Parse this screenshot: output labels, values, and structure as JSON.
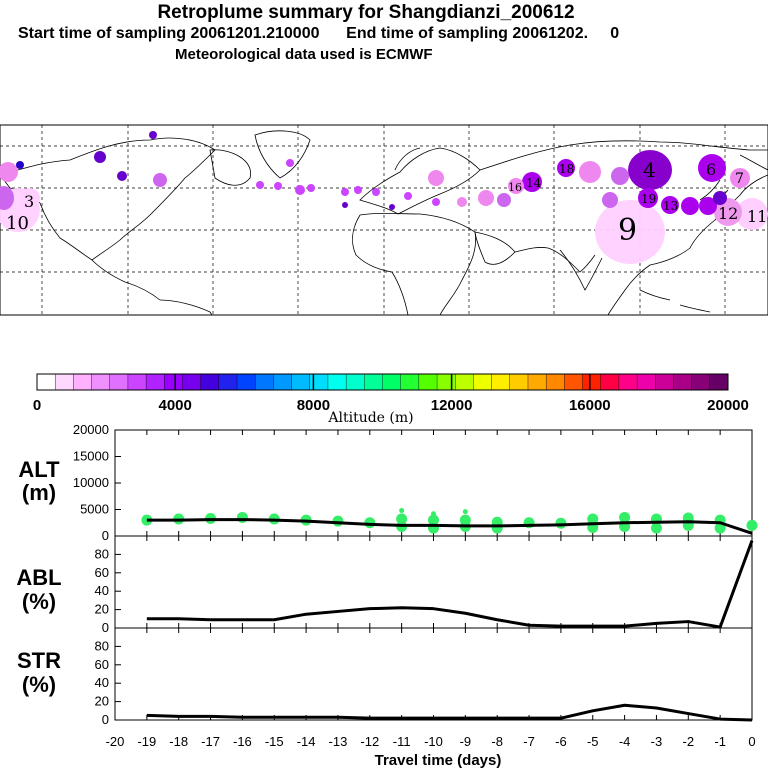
{
  "header": {
    "title": "Retroplume summary for Shangdianzi_200612",
    "line2": "Start time of sampling 20061201.210000      End time of sampling 20061202.     0",
    "line3": "Meteorological data used is ECMWF"
  },
  "map": {
    "markers": [
      {
        "label": "10",
        "color": "#ee99ee"
      },
      {
        "label": "3",
        "color": "#ee99ee"
      },
      {
        "label": "12",
        "color": "#ee99ee"
      },
      {
        "label": "4",
        "color": "#8800cc"
      },
      {
        "label": "6",
        "color": "#8800cc"
      },
      {
        "label": "7",
        "color": "#8800cc"
      },
      {
        "label": "9",
        "color": "#ffd0ff"
      },
      {
        "label": "19",
        "color": "#aa00ee"
      },
      {
        "label": "14",
        "color": "#aa00ee"
      },
      {
        "label": "13",
        "color": "#aa00ee"
      },
      {
        "label": "16",
        "color": "#ee99ee"
      },
      {
        "label": "18",
        "color": "#aa00ee"
      },
      {
        "label": "11",
        "color": "#ffd0ff"
      }
    ]
  },
  "colorbar": {
    "title": "Altitude (m)",
    "ticks": [
      "0",
      "4000",
      "8000",
      "12000",
      "16000",
      "20000"
    ],
    "colors": [
      "#ffffff",
      "#ffd8ff",
      "#ffb0ff",
      "#f090ff",
      "#e070ff",
      "#cc44ff",
      "#b022ff",
      "#9900ff",
      "#7700ee",
      "#4400dd",
      "#2222ee",
      "#0044ff",
      "#0077ff",
      "#0099ff",
      "#00bbff",
      "#00ddff",
      "#00ffee",
      "#00ffcc",
      "#00ff99",
      "#00ff66",
      "#22ff33",
      "#55ff00",
      "#88ff00",
      "#bbff00",
      "#eeff00",
      "#ffee00",
      "#ffcc00",
      "#ffaa00",
      "#ff8800",
      "#ff5500",
      "#ff2200",
      "#ff0044",
      "#ff0088",
      "#ee00aa",
      "#cc0099",
      "#aa0088",
      "#880077",
      "#660066"
    ]
  },
  "chart_data": [
    {
      "type": "line",
      "panel": "ALT",
      "ylabel": "ALT\n(m)",
      "ylabel_l1": "ALT",
      "ylabel_l2": "(m)",
      "ylim": [
        0,
        20000
      ],
      "yticks": [
        "0",
        "5000",
        "10000",
        "15000",
        "20000"
      ],
      "x": [
        -19,
        -18,
        -17,
        -16,
        -15,
        -14,
        -13,
        -12,
        -11,
        -10,
        -9,
        -8,
        -7,
        -6,
        -5,
        -4,
        -3,
        -2,
        -1,
        0
      ],
      "values": [
        3000,
        3000,
        3100,
        3100,
        3000,
        2800,
        2500,
        2200,
        2000,
        2000,
        1900,
        1900,
        2000,
        2100,
        2300,
        2500,
        2600,
        2700,
        2500,
        500
      ],
      "scatter_color": "#33ee66",
      "scatter": [
        {
          "x": -19,
          "y": 3000
        },
        {
          "x": -18,
          "y": 3200
        },
        {
          "x": -17,
          "y": 3300
        },
        {
          "x": -16,
          "y": 3500
        },
        {
          "x": -15,
          "y": 3200
        },
        {
          "x": -14,
          "y": 3000
        },
        {
          "x": -13,
          "y": 2800
        },
        {
          "x": -12,
          "y": 2500
        },
        {
          "x": -11,
          "y": 1800
        },
        {
          "x": -11,
          "y": 3200
        },
        {
          "x": -11,
          "y": 4800
        },
        {
          "x": -10,
          "y": 1500
        },
        {
          "x": -10,
          "y": 3000
        },
        {
          "x": -10,
          "y": 4200
        },
        {
          "x": -9,
          "y": 1800
        },
        {
          "x": -9,
          "y": 3000
        },
        {
          "x": -9,
          "y": 4600
        },
        {
          "x": -8,
          "y": 1500
        },
        {
          "x": -8,
          "y": 2600
        },
        {
          "x": -7,
          "y": 2500
        },
        {
          "x": -6,
          "y": 2400
        },
        {
          "x": -5,
          "y": 3200
        },
        {
          "x": -5,
          "y": 1600
        },
        {
          "x": -4,
          "y": 3500
        },
        {
          "x": -4,
          "y": 1800
        },
        {
          "x": -3,
          "y": 3200
        },
        {
          "x": -3,
          "y": 1500
        },
        {
          "x": -2,
          "y": 3400
        },
        {
          "x": -2,
          "y": 2000
        },
        {
          "x": -1,
          "y": 3000
        },
        {
          "x": -1,
          "y": 1500
        },
        {
          "x": 0,
          "y": 2000
        }
      ]
    },
    {
      "type": "line",
      "panel": "ABL",
      "ylabel": "ABL\n(%)",
      "ylabel_l1": "ABL",
      "ylabel_l2": "(%)",
      "ylim": [
        0,
        100
      ],
      "yticks": [
        "0",
        "20",
        "40",
        "60",
        "80"
      ],
      "x": [
        -19,
        -18,
        -17,
        -16,
        -15,
        -14,
        -13,
        -12,
        -11,
        -10,
        -9,
        -8,
        -7,
        -6,
        -5,
        -4,
        -3,
        -2,
        -1,
        0
      ],
      "values": [
        10,
        10,
        9,
        9,
        9,
        15,
        18,
        21,
        22,
        21,
        16,
        9,
        3,
        2,
        2,
        2,
        5,
        7,
        1,
        95
      ]
    },
    {
      "type": "line",
      "panel": "STR",
      "ylabel": "STR\n(%)",
      "ylabel_l1": "STR",
      "ylabel_l2": "(%)",
      "ylim": [
        0,
        100
      ],
      "yticks": [
        "0",
        "20",
        "40",
        "60",
        "80"
      ],
      "x": [
        -19,
        -18,
        -17,
        -16,
        -15,
        -14,
        -13,
        -12,
        -11,
        -10,
        -9,
        -8,
        -7,
        -6,
        -5,
        -4,
        -3,
        -2,
        -1,
        0
      ],
      "values": [
        5,
        4,
        4,
        3,
        3,
        3,
        3,
        2,
        2,
        2,
        2,
        2,
        2,
        2,
        10,
        16,
        13,
        7,
        1,
        0
      ]
    }
  ],
  "xaxis": {
    "label": "Travel time (days)",
    "ticks": [
      "-20",
      "-19",
      "-18",
      "-17",
      "-16",
      "-15",
      "-14",
      "-13",
      "-12",
      "-11",
      "-10",
      "-9",
      "-8",
      "-7",
      "-6",
      "-5",
      "-4",
      "-3",
      "-2",
      "-1",
      "0"
    ]
  }
}
